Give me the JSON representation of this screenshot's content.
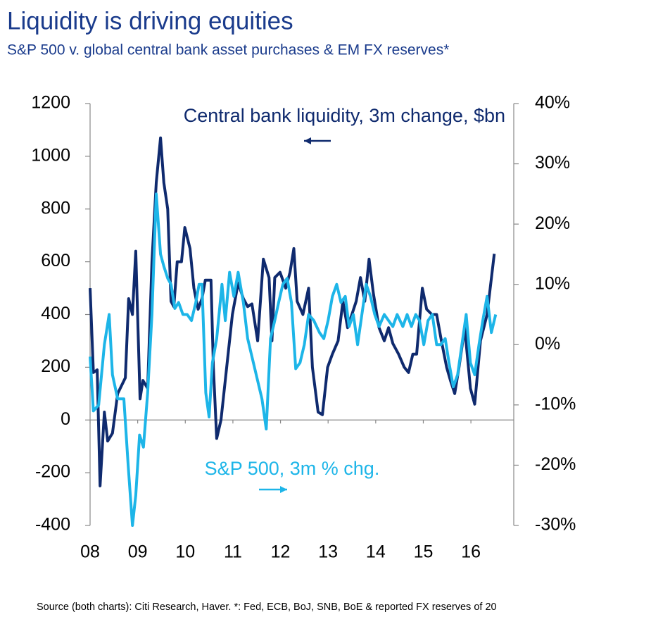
{
  "chart_data": {
    "type": "line",
    "title": "Liquidity is driving equities",
    "subtitle": "S&P 500 v. global central bank asset purchases & EM FX reserves*",
    "source": "Source (both charts): Citi Research, Haver. *: Fed, ECB, BoJ, SNB, BoE & reported FX reserves of 20",
    "xlim": [
      8,
      16.9
    ],
    "xticks": [
      {
        "value": 8,
        "label": "08"
      },
      {
        "value": 9,
        "label": "09"
      },
      10,
      11,
      12,
      13,
      14,
      15,
      16
    ],
    "ylim": [
      -400,
      1200
    ],
    "yticks": [
      -400,
      -200,
      0,
      200,
      400,
      600,
      800,
      1000,
      1200
    ],
    "y2lim": [
      -30,
      40
    ],
    "y2ticks": [
      {
        "value": -30,
        "label": "-30%"
      },
      {
        "value": -20,
        "label": "-20%"
      },
      {
        "value": -10,
        "label": "-10%"
      },
      {
        "value": 0,
        "label": "0%"
      },
      {
        "value": 10,
        "label": "10%"
      },
      {
        "value": 20,
        "label": "20%"
      },
      {
        "value": 30,
        "label": "30%"
      },
      {
        "value": 40,
        "label": "40%"
      }
    ],
    "series": [
      {
        "name": "Central bank liquidity, 3m change, $bn",
        "color": "#0f2a6e",
        "axis": "y",
        "x": [
          8.0,
          8.07,
          8.15,
          8.21,
          8.3,
          8.37,
          8.47,
          8.58,
          8.74,
          8.81,
          8.89,
          8.96,
          9.05,
          9.11,
          9.21,
          9.3,
          9.39,
          9.48,
          9.55,
          9.63,
          9.7,
          9.76,
          9.83,
          9.92,
          9.99,
          10.1,
          10.18,
          10.27,
          10.35,
          10.42,
          10.54,
          10.59,
          10.66,
          10.75,
          10.87,
          10.99,
          11.11,
          11.22,
          11.31,
          11.4,
          11.52,
          11.64,
          11.76,
          11.82,
          11.88,
          11.99,
          12.11,
          12.2,
          12.28,
          12.35,
          12.47,
          12.59,
          12.67,
          12.79,
          12.88,
          12.99,
          13.09,
          13.21,
          13.31,
          13.41,
          13.5,
          13.59,
          13.68,
          13.77,
          13.86,
          13.95,
          14.07,
          14.18,
          14.27,
          14.36,
          14.48,
          14.6,
          14.69,
          14.78,
          14.86,
          14.98,
          15.07,
          15.18,
          15.28,
          15.38,
          15.49,
          15.57,
          15.66,
          15.75,
          15.87,
          15.99,
          16.08,
          16.2,
          16.34,
          16.49
        ],
        "values": [
          500,
          180,
          190,
          -250,
          30,
          -80,
          -50,
          100,
          160,
          460,
          400,
          640,
          80,
          150,
          120,
          600,
          900,
          1070,
          900,
          800,
          450,
          430,
          600,
          600,
          730,
          650,
          500,
          420,
          460,
          530,
          530,
          200,
          -70,
          0,
          200,
          400,
          520,
          460,
          430,
          440,
          300,
          610,
          540,
          300,
          540,
          560,
          500,
          560,
          650,
          450,
          400,
          500,
          200,
          30,
          20,
          200,
          250,
          300,
          450,
          350,
          400,
          450,
          540,
          450,
          610,
          480,
          350,
          300,
          350,
          290,
          250,
          200,
          180,
          250,
          250,
          500,
          420,
          400,
          400,
          300,
          200,
          150,
          100,
          200,
          350,
          120,
          60,
          300,
          400,
          630
        ]
      },
      {
        "name": "S&P 500, 3m % chg.",
        "color": "#1db5e8",
        "axis": "y2",
        "x": [
          8.0,
          8.07,
          8.18,
          8.3,
          8.4,
          8.47,
          8.58,
          8.71,
          8.8,
          8.89,
          8.96,
          9.04,
          9.12,
          9.21,
          9.3,
          9.39,
          9.48,
          9.55,
          9.63,
          9.7,
          9.78,
          9.86,
          9.95,
          10.04,
          10.13,
          10.22,
          10.29,
          10.35,
          10.43,
          10.5,
          10.57,
          10.66,
          10.77,
          10.84,
          10.93,
          11.02,
          11.11,
          11.22,
          11.31,
          11.4,
          11.52,
          11.61,
          11.7,
          11.79,
          11.88,
          11.96,
          12.05,
          12.14,
          12.23,
          12.32,
          12.41,
          12.5,
          12.59,
          12.7,
          12.82,
          12.91,
          13.0,
          13.09,
          13.18,
          13.27,
          13.36,
          13.44,
          13.53,
          13.62,
          13.71,
          13.8,
          13.89,
          13.98,
          14.07,
          14.18,
          14.27,
          14.36,
          14.45,
          14.57,
          14.66,
          14.75,
          14.84,
          14.92,
          15.01,
          15.1,
          15.19,
          15.28,
          15.37,
          15.46,
          15.54,
          15.63,
          15.72,
          15.81,
          15.9,
          15.99,
          16.08,
          16.17,
          16.25,
          16.34,
          16.43,
          16.52
        ],
        "values": [
          -2,
          -11,
          -10,
          0,
          5,
          -5,
          -9,
          -9,
          -20,
          -30,
          -25,
          -15,
          -17,
          -8,
          5,
          25,
          15,
          13,
          11,
          10,
          6,
          7,
          5,
          5,
          4,
          7,
          10,
          10,
          -8,
          -12,
          -3,
          1,
          10,
          4,
          12,
          8,
          12,
          7,
          1,
          -2,
          -6,
          -9,
          -14,
          1,
          4,
          7,
          10,
          11,
          7,
          -4,
          -3,
          0,
          5,
          4,
          2,
          1,
          4,
          8,
          10,
          7,
          8,
          3,
          5,
          0,
          5,
          10,
          8,
          5,
          3,
          5,
          4,
          3,
          5,
          3,
          5,
          3,
          5,
          4,
          0,
          4,
          5,
          0,
          0,
          1,
          -3,
          -7,
          -5,
          0,
          5,
          -3,
          -5,
          0,
          4,
          8,
          2,
          5
        ]
      }
    ]
  }
}
